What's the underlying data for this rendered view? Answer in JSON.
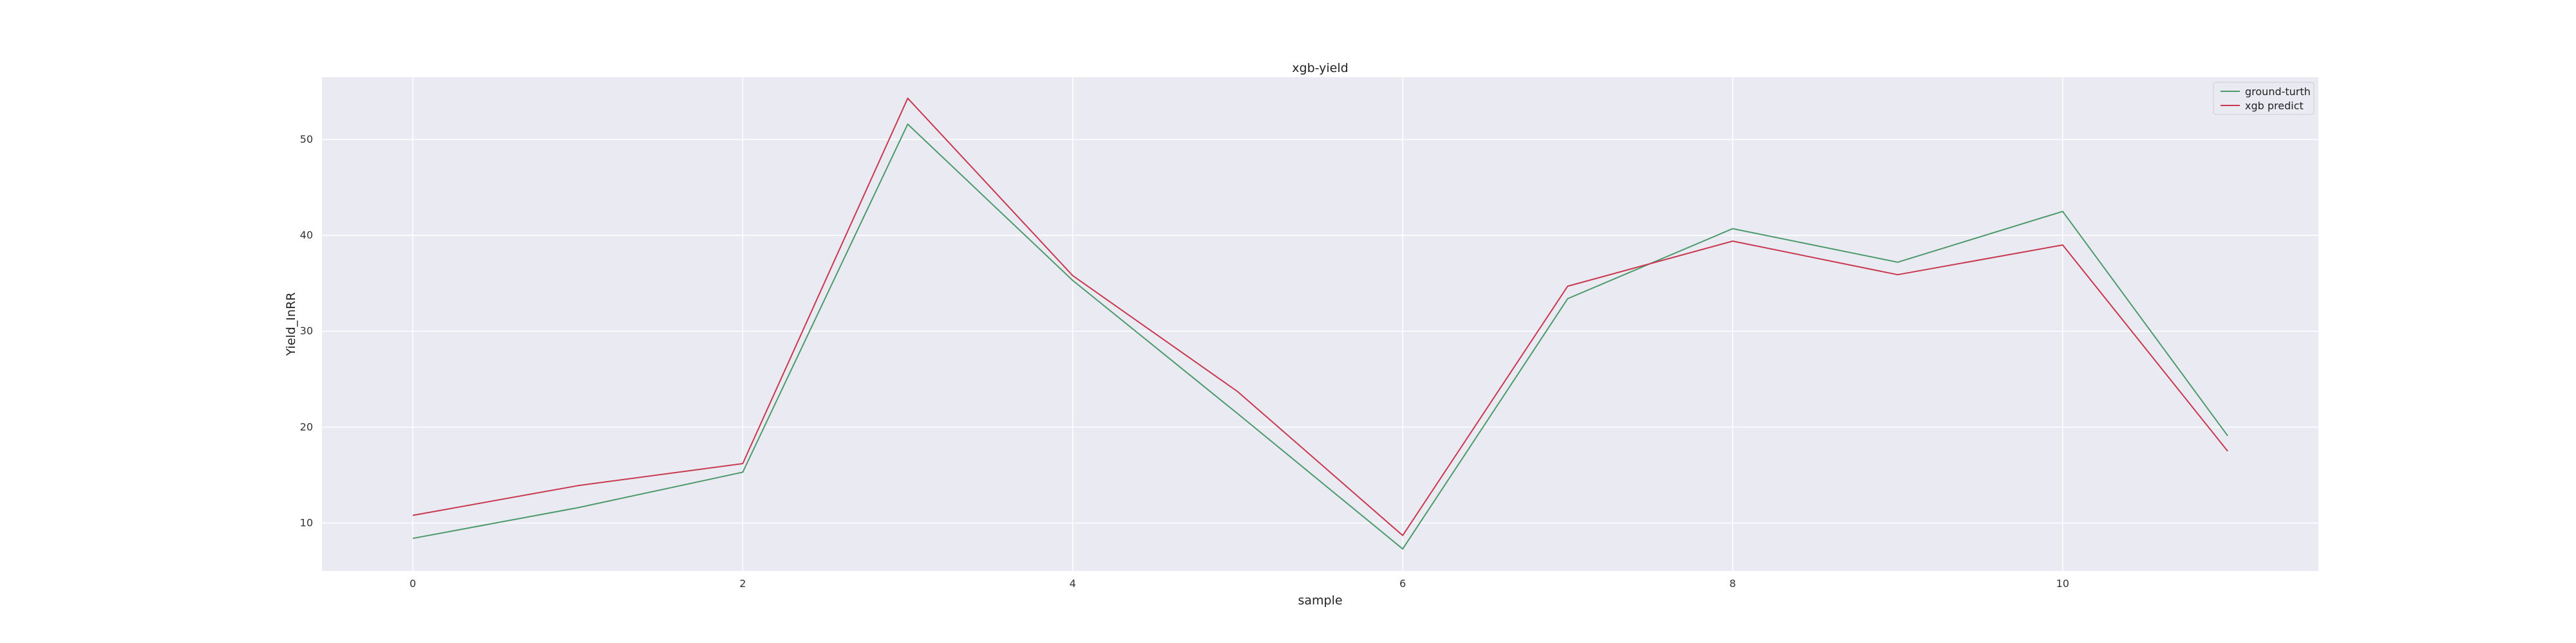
{
  "chart_data": {
    "type": "line",
    "title": "xgb-yield",
    "xlabel": "sample",
    "ylabel": "Yield_InRR",
    "x": [
      0,
      1,
      2,
      3,
      4,
      5,
      6,
      7,
      8,
      9,
      10,
      11
    ],
    "xticks": [
      0,
      2,
      4,
      6,
      8,
      10
    ],
    "yticks": [
      10,
      20,
      30,
      40,
      50
    ],
    "xlim": [
      -0.55,
      11.55
    ],
    "ylim": [
      5.0,
      56.5
    ],
    "grid": true,
    "legend_position": "top-right",
    "series": [
      {
        "name": "ground-turth",
        "color": "#4c9a6b",
        "values": [
          8.4,
          11.6,
          15.3,
          51.6,
          35.3,
          21.4,
          7.3,
          33.4,
          40.7,
          37.2,
          42.5,
          19.1
        ]
      },
      {
        "name": "xgb predict",
        "color": "#c8384e",
        "values": [
          10.8,
          13.9,
          16.2,
          54.3,
          35.8,
          23.7,
          8.7,
          34.7,
          39.4,
          35.9,
          39.0,
          17.5
        ]
      }
    ]
  }
}
